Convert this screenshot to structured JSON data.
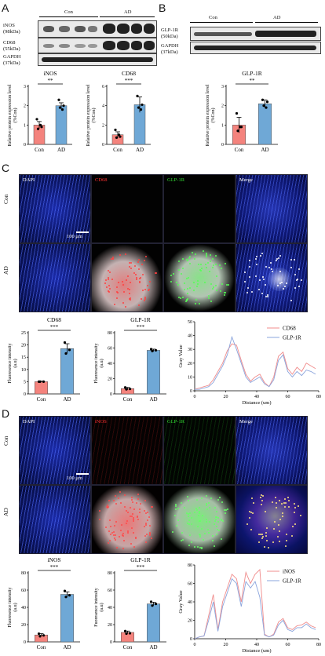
{
  "panels": {
    "A": "A",
    "B": "B",
    "C": "C",
    "D": "D"
  },
  "blot_A": {
    "groups": [
      "Con",
      "AD"
    ],
    "rows": [
      {
        "name": "iNOS",
        "size": "(98kDa)"
      },
      {
        "name": "CD68",
        "size": "(55kDa)"
      },
      {
        "name": "GAPDH",
        "size": "(37kDa)"
      }
    ]
  },
  "blot_B": {
    "groups": [
      "Con",
      "AD"
    ],
    "rows": [
      {
        "name": "GLP-1R",
        "size": "(50kDa)"
      },
      {
        "name": "GAPDH",
        "size": "(37kDa)"
      }
    ]
  },
  "micro_C": {
    "channels": [
      "DAPI",
      "CD68",
      "GLP-1R",
      "Merge"
    ],
    "channel_colors": [
      "#ffffff",
      "#ff3030",
      "#33dd33",
      "#ffffff"
    ],
    "rows": [
      "Con",
      "AD"
    ],
    "scale": "100 μm"
  },
  "micro_D": {
    "channels": [
      "DAPI",
      "iNOS",
      "GLP-1R",
      "Merge"
    ],
    "channel_colors": [
      "#ffffff",
      "#ff3030",
      "#33dd33",
      "#ffffff"
    ],
    "rows": [
      "Con",
      "AD"
    ],
    "scale": "100 μm"
  },
  "chart_data": [
    {
      "id": "A_inos",
      "type": "bar",
      "title": "iNOS",
      "sig": "**",
      "categories": [
        "Con",
        "AD"
      ],
      "values": [
        1.0,
        2.0
      ],
      "errors": [
        0.18,
        0.15
      ],
      "points": [
        [
          1.3,
          0.9,
          0.8,
          1.0
        ],
        [
          2.3,
          2.0,
          1.9,
          1.8
        ]
      ],
      "ylabel": "Relative protein expression level (%Con)",
      "ylim": [
        0,
        3
      ],
      "yticks": [
        0,
        1,
        2,
        3
      ],
      "colors": [
        "#f4837d",
        "#6fa8d6"
      ]
    },
    {
      "id": "A_cd68",
      "type": "bar",
      "title": "CD68",
      "sig": "***",
      "categories": [
        "Con",
        "AD"
      ],
      "values": [
        1.0,
        4.1
      ],
      "errors": [
        0.3,
        0.8
      ],
      "points": [
        [
          1.5,
          0.8,
          0.7,
          1.0
        ],
        [
          5.0,
          4.1,
          3.8,
          3.6
        ]
      ],
      "ylabel": "Relative protein expression level (%Con)",
      "ylim": [
        0,
        6
      ],
      "yticks": [
        0,
        2,
        4,
        6
      ],
      "colors": [
        "#f4837d",
        "#6fa8d6"
      ]
    },
    {
      "id": "B_glp1r",
      "type": "bar",
      "title": "GLP-1R",
      "sig": "**",
      "categories": [
        "Con",
        "AD"
      ],
      "values": [
        1.0,
        2.1
      ],
      "errors": [
        0.4,
        0.2
      ],
      "points": [
        [
          1.6,
          0.9,
          0.7,
          0.9
        ],
        [
          2.3,
          2.2,
          2.0,
          1.9
        ]
      ],
      "ylabel": "Relative protein expression level (%Con)",
      "ylim": [
        0,
        3
      ],
      "yticks": [
        0,
        1,
        2,
        3
      ],
      "colors": [
        "#f4837d",
        "#6fa8d6"
      ]
    },
    {
      "id": "C_cd68",
      "type": "bar",
      "title": "CD68",
      "sig": "***",
      "categories": [
        "Con",
        "AD"
      ],
      "values": [
        5,
        18.5
      ],
      "errors": [
        0.2,
        2.0
      ],
      "points": [
        [
          5.0,
          5.0,
          5.0
        ],
        [
          21,
          18,
          16.5
        ]
      ],
      "ylabel": "Fluoresence intensity (a.u)",
      "ylim": [
        0,
        25
      ],
      "yticks": [
        0,
        5,
        10,
        15,
        20,
        25
      ],
      "colors": [
        "#f4837d",
        "#6fa8d6"
      ]
    },
    {
      "id": "C_glp1r",
      "type": "bar",
      "title": "GLP-1R",
      "sig": "***",
      "categories": [
        "Con",
        "AD"
      ],
      "values": [
        7,
        57
      ],
      "errors": [
        1.5,
        1.5
      ],
      "points": [
        [
          8.5,
          6.5,
          6
        ],
        [
          58.5,
          57,
          56
        ]
      ],
      "ylabel": "Fluoresence intensity (a.u)",
      "ylim": [
        0,
        80
      ],
      "yticks": [
        0,
        20,
        40,
        60,
        80
      ],
      "colors": [
        "#f4837d",
        "#6fa8d6"
      ]
    },
    {
      "id": "C_line",
      "type": "line",
      "xlabel": "Distance (um)",
      "ylabel": "Gray Value",
      "xlim": [
        0,
        80
      ],
      "ylim": [
        0,
        50
      ],
      "xticks": [
        0,
        20,
        40,
        60,
        80
      ],
      "yticks": [
        0,
        10,
        20,
        30,
        40,
        50
      ],
      "x": [
        0,
        3,
        6,
        9,
        12,
        15,
        18,
        21,
        24,
        27,
        30,
        33,
        36,
        39,
        42,
        45,
        48,
        51,
        54,
        57,
        60,
        63,
        66,
        69,
        72,
        75,
        78
      ],
      "series": [
        {
          "name": "CD68",
          "color": "#f08c8c",
          "values": [
            1,
            2,
            3,
            4,
            8,
            14,
            20,
            29,
            34,
            33,
            22,
            12,
            7,
            10,
            12,
            6,
            3,
            10,
            25,
            28,
            16,
            12,
            17,
            14,
            20,
            18,
            16
          ]
        },
        {
          "name": "GLP-1R",
          "color": "#8aa4dc",
          "values": [
            1,
            1,
            2,
            3,
            6,
            12,
            18,
            26,
            39,
            30,
            20,
            10,
            6,
            8,
            10,
            5,
            3,
            8,
            22,
            26,
            14,
            10,
            14,
            11,
            15,
            14,
            12
          ]
        }
      ]
    },
    {
      "id": "D_inos",
      "type": "bar",
      "title": "iNOS",
      "sig": "***",
      "categories": [
        "Con",
        "AD"
      ],
      "values": [
        8,
        55
      ],
      "errors": [
        1.5,
        3.0
      ],
      "points": [
        [
          9.5,
          7.5,
          6.5
        ],
        [
          59,
          54,
          52
        ]
      ],
      "ylabel": "Fluoresence intensity (a.u)",
      "ylim": [
        0,
        80
      ],
      "yticks": [
        0,
        20,
        40,
        60,
        80
      ],
      "colors": [
        "#f4837d",
        "#6fa8d6"
      ]
    },
    {
      "id": "D_glp1r",
      "type": "bar",
      "title": "GLP-1R",
      "sig": "***",
      "categories": [
        "Con",
        "AD"
      ],
      "values": [
        11,
        44
      ],
      "errors": [
        1.5,
        2.0
      ],
      "points": [
        [
          12.5,
          10,
          9.5
        ],
        [
          46.5,
          44,
          42
        ]
      ],
      "ylabel": "Fuoresence intensity (a.u)",
      "ylim": [
        0,
        80
      ],
      "yticks": [
        0,
        20,
        40,
        60,
        80
      ],
      "colors": [
        "#f4837d",
        "#6fa8d6"
      ]
    },
    {
      "id": "D_line",
      "type": "line",
      "xlabel": "Distance (um)",
      "ylabel": "Gray Value",
      "xlim": [
        0,
        80
      ],
      "ylim": [
        0,
        80
      ],
      "xticks": [
        0,
        20,
        40,
        60,
        80
      ],
      "yticks": [
        0,
        20,
        40,
        60,
        80
      ],
      "x": [
        0,
        3,
        6,
        9,
        12,
        15,
        18,
        21,
        24,
        27,
        30,
        33,
        36,
        39,
        42,
        45,
        48,
        51,
        54,
        57,
        60,
        63,
        66,
        69,
        72,
        75,
        78
      ],
      "series": [
        {
          "name": "iNOS",
          "color": "#f08c8c",
          "values": [
            0,
            2,
            3,
            25,
            48,
            10,
            40,
            55,
            70,
            65,
            40,
            72,
            60,
            70,
            75,
            5,
            2,
            5,
            18,
            22,
            12,
            10,
            14,
            15,
            18,
            14,
            12
          ]
        },
        {
          "name": "GLP-1R",
          "color": "#8aa4dc",
          "values": [
            0,
            2,
            3,
            20,
            40,
            8,
            35,
            50,
            65,
            60,
            35,
            62,
            55,
            62,
            45,
            4,
            2,
            4,
            15,
            20,
            10,
            8,
            12,
            12,
            16,
            12,
            10
          ]
        }
      ]
    }
  ]
}
